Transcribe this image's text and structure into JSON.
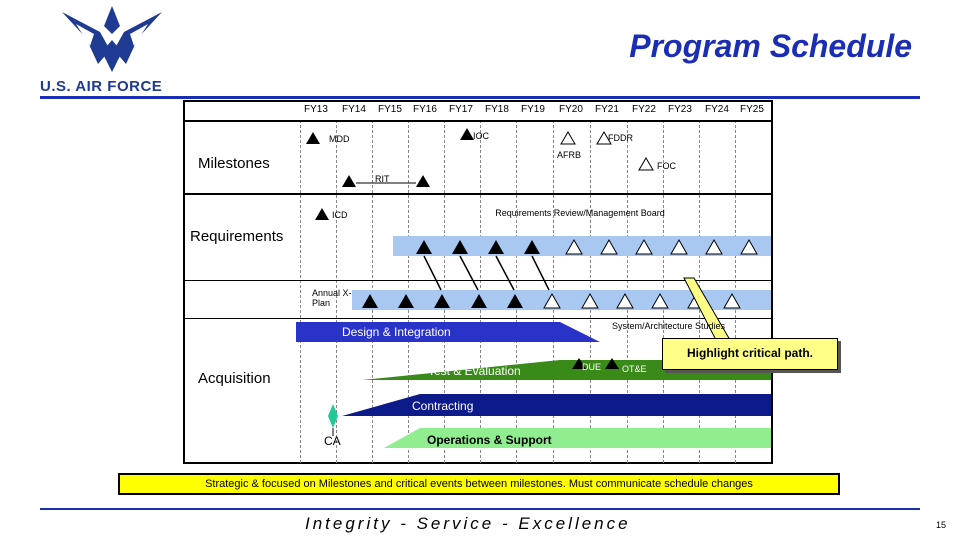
{
  "header": {
    "org": "U.S. AIR FORCE",
    "title": "Program Schedule"
  },
  "fiscal_years": [
    "FY13",
    "FY14",
    "FY15",
    "FY16",
    "FY17",
    "FY18",
    "FY19",
    "FY20",
    "FY21",
    "FY22",
    "FY23",
    "FY24",
    "FY25"
  ],
  "sections": {
    "milestones": "Milestones",
    "requirements": "Requirements",
    "acquisition": "Acquisition"
  },
  "milestones": {
    "mdd": "MDD",
    "ioc": "IOC",
    "fddr": "FDDR",
    "afrb": "AFRB",
    "foc": "FOC",
    "rit": "RIT"
  },
  "requirements": {
    "icd": "ICD",
    "review_board": "Requirements Review/Management Board",
    "annual_xplan": "Annual X-Plan"
  },
  "acquisition": {
    "system_studies": "System/Architecture Studies",
    "design_integration": "Design & Integration",
    "test_evaluation": "Test & Evaluation",
    "due": "DUE",
    "ote": "OT&E",
    "contracting": "Contracting",
    "ca": "CA",
    "ops_support": "Operations & Support"
  },
  "callout": "Highlight critical path.",
  "footer_note": "Strategic & focused on Milestones and critical events between milestones.  Must communicate schedule changes",
  "motto": "Integrity - Service - Excellence",
  "page_number": "15",
  "colors": {
    "brand_blue": "#1a2db5",
    "band_blue": "#a8c8f2",
    "design_blue": "#2a33c8",
    "test_green": "#3a8a1a",
    "contract_navy": "#0d1a8a",
    "ops_green": "#90ee90",
    "highlight_yellow": "#ffff00"
  }
}
